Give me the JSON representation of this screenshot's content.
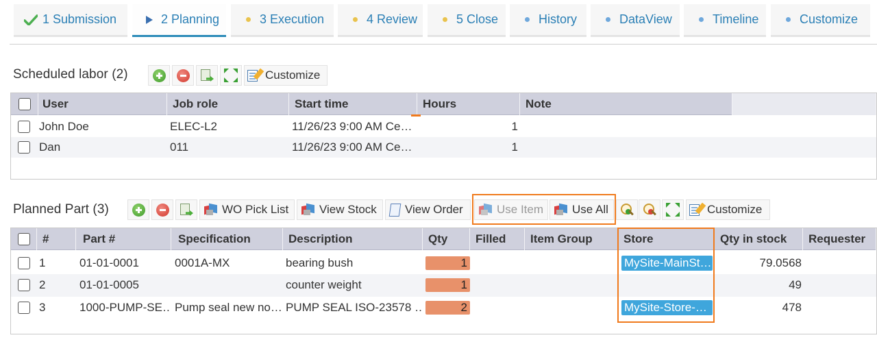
{
  "tabs": [
    {
      "label": "1 Submission",
      "icon": "check-icon",
      "state": "done"
    },
    {
      "label": "2 Planning",
      "icon": "play-icon",
      "state": "active"
    },
    {
      "label": "3 Execution",
      "icon": "dot-icon",
      "state": "pending"
    },
    {
      "label": "4 Review",
      "icon": "dot-icon",
      "state": "pending"
    },
    {
      "label": "5 Close",
      "icon": "dot-icon",
      "state": "pending"
    },
    {
      "label": "History",
      "icon": "dot-icon",
      "state": "extra"
    },
    {
      "label": "DataView",
      "icon": "dot-icon",
      "state": "extra"
    },
    {
      "label": "Timeline",
      "icon": "dot-icon",
      "state": "extra"
    },
    {
      "label": "Customize",
      "icon": "dot-icon",
      "state": "extra"
    }
  ],
  "labor": {
    "title": "Scheduled labor (2)",
    "toolbar": {
      "customize": "Customize"
    },
    "columns": [
      "User",
      "Job role",
      "Start time",
      "Hours",
      "Note"
    ],
    "rows": [
      {
        "user": "John Doe",
        "job_role": "ELEC-L2",
        "start_time": "11/26/23 9:00 AM Ce…",
        "hours": "1",
        "note": ""
      },
      {
        "user": "Dan",
        "job_role": "011",
        "start_time": "11/26/23 9:00 AM Ce…",
        "hours": "1",
        "note": ""
      }
    ]
  },
  "parts": {
    "title": "Planned Part (3)",
    "toolbar": {
      "wo_pick_list": "WO Pick List",
      "view_stock": "View Stock",
      "view_order": "View Order",
      "use_item": "Use Item",
      "use_all": "Use All",
      "customize": "Customize"
    },
    "columns": [
      "#",
      "Part #",
      "Specification",
      "Description",
      "Qty",
      "Filled",
      "Item Group",
      "Store",
      "Qty in stock",
      "Requester"
    ],
    "rows": [
      {
        "num": "1",
        "part": "01-01-0001",
        "spec": "0001A-MX",
        "desc": "bearing bush",
        "qty": "1",
        "filled": "",
        "group": "",
        "store": "MySite-MainSt…",
        "stock": "79.0568",
        "requester": ""
      },
      {
        "num": "2",
        "part": "01-01-0005",
        "spec": "",
        "desc": "counter weight",
        "qty": "1",
        "filled": "",
        "group": "",
        "store": "",
        "stock": "49",
        "requester": ""
      },
      {
        "num": "3",
        "part": "1000-PUMP-SE…",
        "spec": "Pump seal new no…",
        "desc": "PUMP SEAL ISO-23578 …",
        "qty": "2",
        "filled": "",
        "group": "",
        "store": "MySite-Store-…",
        "stock": "478",
        "requester": ""
      }
    ]
  },
  "colors": {
    "accent": "#2a8ab8",
    "tab_text": "#2a7fb5",
    "header_bg": "#cfd0dd",
    "qty_pill": "#e8916a",
    "store_pill": "#3fa6dc",
    "highlight": "#f07a1c"
  }
}
